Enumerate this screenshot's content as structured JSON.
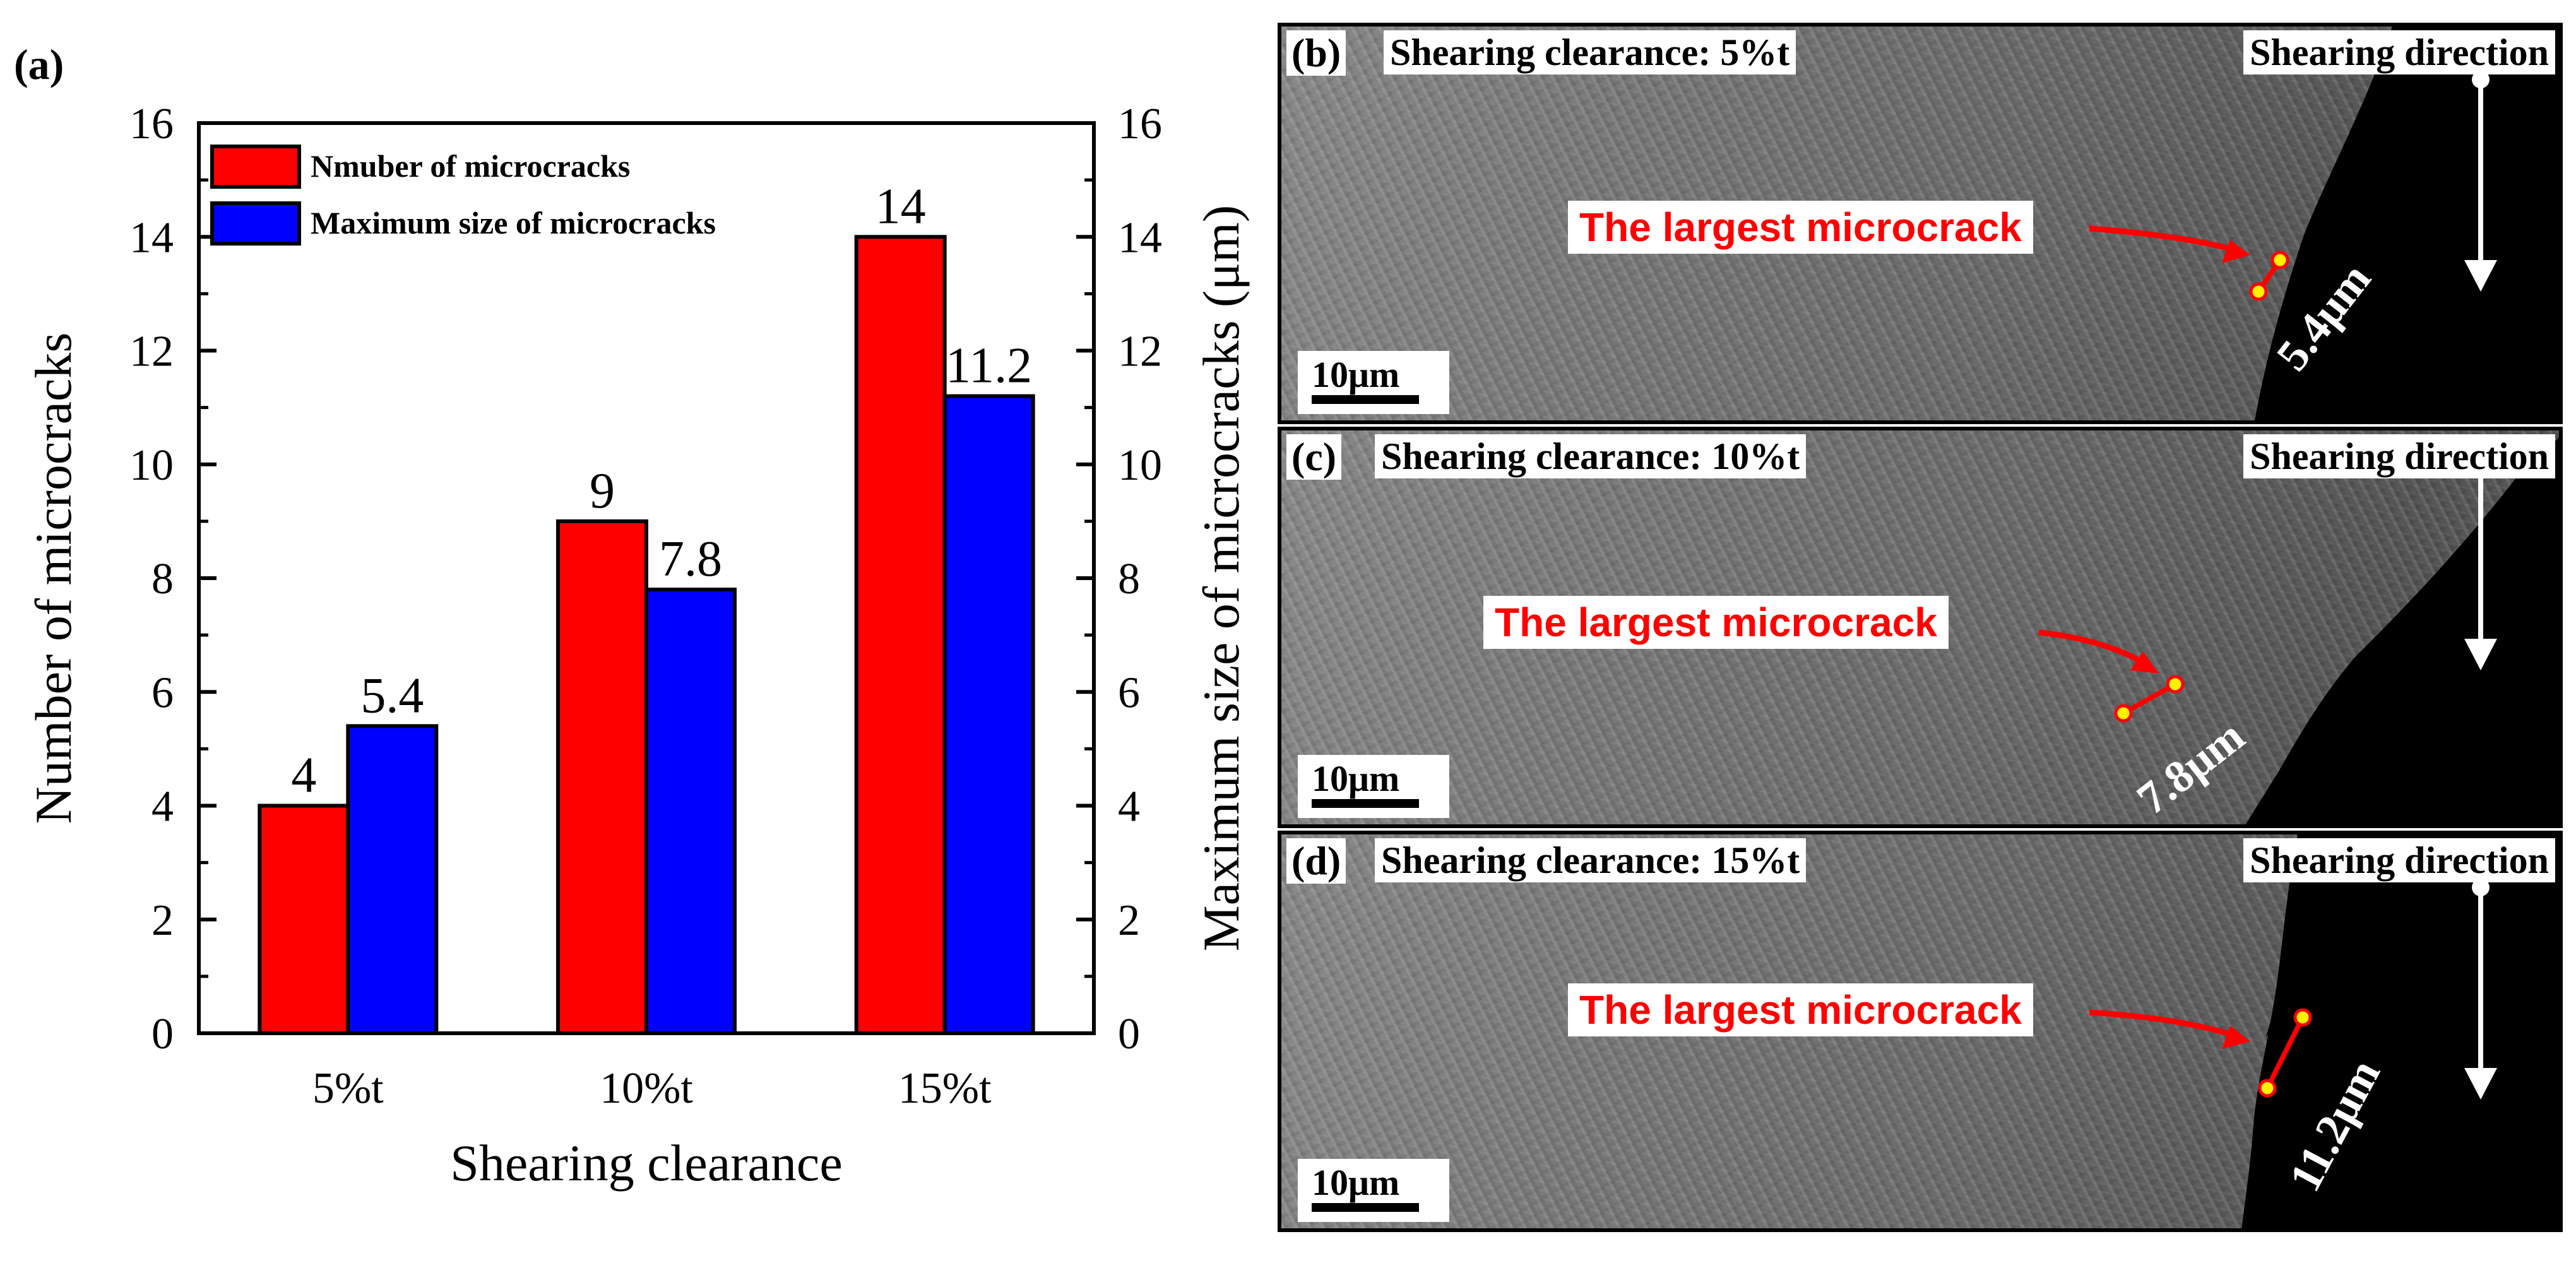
{
  "panel_a_label": "(a)",
  "chart_data": {
    "type": "bar",
    "categories": [
      "5%t",
      "10%t",
      "15%t"
    ],
    "series": [
      {
        "name": "Nmuber of microcracks",
        "values": [
          4,
          9,
          14
        ],
        "color": "#ff0000",
        "axis": "left"
      },
      {
        "name": "Maximum size of microcracks",
        "values": [
          5.4,
          7.8,
          11.2
        ],
        "color": "#0000ff",
        "axis": "right"
      }
    ],
    "value_labels": [
      [
        "4",
        "9",
        "14"
      ],
      [
        "5.4",
        "7.8",
        "11.2"
      ]
    ],
    "xlabel": "Shearing clearance",
    "ylabel": "Number of microcracks",
    "y2label": "Maximum size of microcracks (μm)",
    "ylim": [
      0,
      16
    ],
    "y2lim": [
      0,
      16
    ],
    "yticks": [
      "0",
      "2",
      "4",
      "6",
      "8",
      "10",
      "12",
      "14",
      "16"
    ],
    "legend_position": "top-left",
    "grid": false
  },
  "panels": [
    {
      "label": "(b)",
      "clearance": "Shearing clearance: 5%t",
      "direction": "Shearing direction",
      "annotation": "The largest microcrack",
      "size": "5.4μm",
      "scale": "10μm"
    },
    {
      "label": "(c)",
      "clearance": "Shearing clearance: 10%t",
      "direction": "Shearing direction",
      "annotation": "The largest microcrack",
      "size": "7.8μm",
      "scale": "10μm"
    },
    {
      "label": "(d)",
      "clearance": "Shearing clearance: 15%t",
      "direction": "Shearing direction",
      "annotation": "The largest microcrack",
      "size": "11.2μm",
      "scale": "10μm"
    }
  ]
}
